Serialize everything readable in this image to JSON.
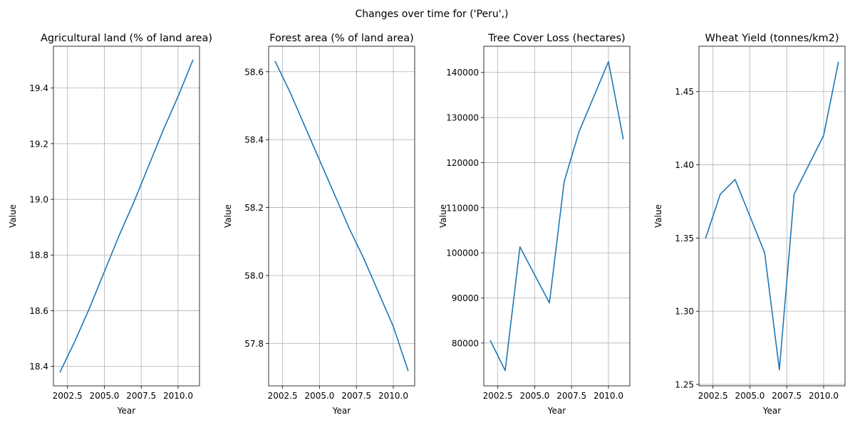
{
  "figure": {
    "suptitle": "Changes over time for ('Peru',)",
    "line_color": "#1f77b4"
  },
  "chart_data": [
    {
      "type": "line",
      "title": "Agricultural land (% of land area)",
      "xlabel": "Year",
      "ylabel": "Value",
      "x": [
        2002,
        2003,
        2004,
        2005,
        2006,
        2007,
        2008,
        2009,
        2010,
        2011
      ],
      "series": [
        {
          "name": "Agricultural land (% of land area)",
          "values": [
            18.38,
            18.49,
            18.61,
            18.74,
            18.87,
            18.99,
            19.12,
            19.25,
            19.37,
            19.5
          ]
        }
      ],
      "xlim": [
        2001.55,
        2011.45
      ],
      "ylim": [
        18.33,
        19.55
      ],
      "xticks": [
        2002.5,
        2005.0,
        2007.5,
        2010.0
      ],
      "xtick_labels": [
        "2002.5",
        "2005.0",
        "2007.5",
        "2010.0"
      ],
      "yticks": [
        18.4,
        18.6,
        18.8,
        19.0,
        19.2,
        19.4
      ],
      "ytick_labels": [
        "18.4",
        "18.6",
        "18.8",
        "19.0",
        "19.2",
        "19.4"
      ],
      "grid": true
    },
    {
      "type": "line",
      "title": "Forest area (% of land area)",
      "xlabel": "Year",
      "ylabel": "Value",
      "x": [
        2002,
        2003,
        2004,
        2005,
        2006,
        2007,
        2008,
        2009,
        2010,
        2011
      ],
      "series": [
        {
          "name": "Forest area (% of land area)",
          "values": [
            58.63,
            58.54,
            58.44,
            58.34,
            58.24,
            58.14,
            58.05,
            57.95,
            57.85,
            57.72
          ]
        }
      ],
      "xlim": [
        2001.55,
        2011.45
      ],
      "ylim": [
        57.675,
        58.675
      ],
      "xticks": [
        2002.5,
        2005.0,
        2007.5,
        2010.0
      ],
      "xtick_labels": [
        "2002.5",
        "2005.0",
        "2007.5",
        "2010.0"
      ],
      "yticks": [
        57.8,
        58.0,
        58.2,
        58.4,
        58.6
      ],
      "ytick_labels": [
        "57.8",
        "58.0",
        "58.2",
        "58.4",
        "58.6"
      ],
      "grid": true
    },
    {
      "type": "line",
      "title": "Tree Cover Loss (hectares)",
      "xlabel": "Year",
      "ylabel": "Value",
      "x": [
        2002,
        2003,
        2004,
        2005,
        2006,
        2007,
        2008,
        2009,
        2010,
        2011
      ],
      "series": [
        {
          "name": "Tree Cover Loss (hectares)",
          "values": [
            80500,
            73900,
            101300,
            95100,
            88900,
            115800,
            126800,
            134600,
            142400,
            125300
          ]
        }
      ],
      "xlim": [
        2001.55,
        2011.45
      ],
      "ylim": [
        70500,
        145800
      ],
      "xticks": [
        2002.5,
        2005.0,
        2007.5,
        2010.0
      ],
      "xtick_labels": [
        "2002.5",
        "2005.0",
        "2007.5",
        "2010.0"
      ],
      "yticks": [
        80000,
        90000,
        100000,
        110000,
        120000,
        130000,
        140000
      ],
      "ytick_labels": [
        "80000",
        "90000",
        "100000",
        "110000",
        "120000",
        "130000",
        "140000"
      ],
      "grid": true
    },
    {
      "type": "line",
      "title": "Wheat Yield (tonnes/km2)",
      "xlabel": "Year",
      "ylabel": "Value",
      "x": [
        2002,
        2003,
        2004,
        2005,
        2006,
        2007,
        2008,
        2009,
        2010,
        2011
      ],
      "series": [
        {
          "name": "Wheat Yield (tonnes/km2)",
          "values": [
            1.35,
            1.38,
            1.39,
            1.365,
            1.34,
            1.26,
            1.38,
            1.4,
            1.42,
            1.47
          ]
        }
      ],
      "xlim": [
        2001.55,
        2011.45
      ],
      "ylim": [
        1.249,
        1.481
      ],
      "xticks": [
        2002.5,
        2005.0,
        2007.5,
        2010.0
      ],
      "xtick_labels": [
        "2002.5",
        "2005.0",
        "2007.5",
        "2010.0"
      ],
      "yticks": [
        1.25,
        1.3,
        1.35,
        1.4,
        1.45
      ],
      "ytick_labels": [
        "1.25",
        "1.30",
        "1.35",
        "1.40",
        "1.45"
      ],
      "grid": true
    }
  ]
}
